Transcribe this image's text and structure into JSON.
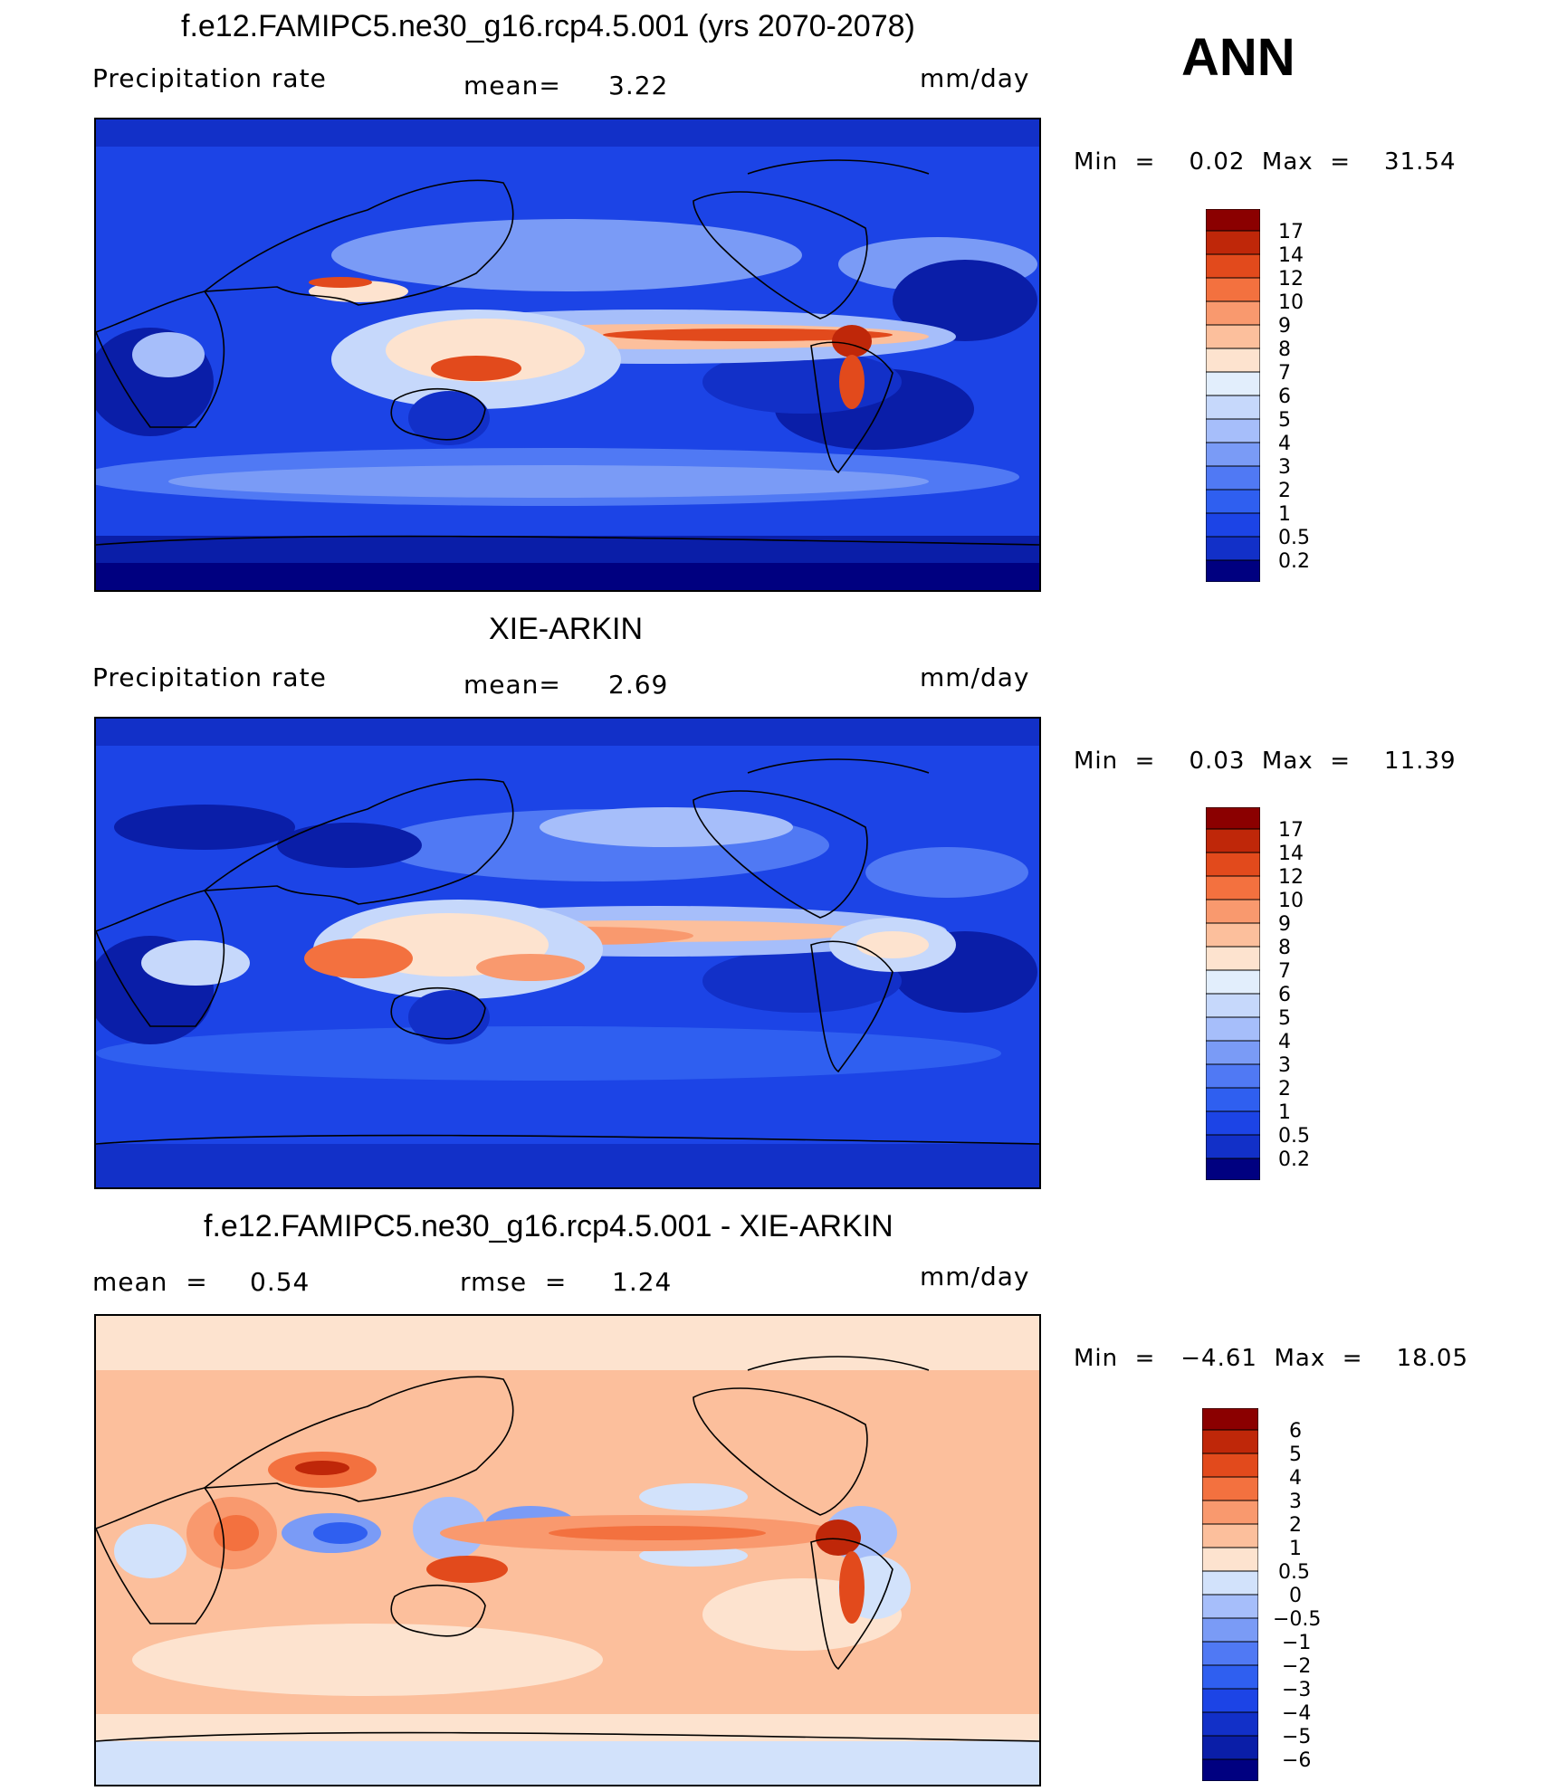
{
  "panels": [
    {
      "title": "f.e12.FAMIPC5.ne30_g16.rcp4.5.001 (yrs 2070-2078)",
      "variable": "Precipitation  rate",
      "mean_label": "mean=",
      "mean_value": "3.22",
      "units": "mm/day",
      "minmax": "Min  =    0.02  Max  =    31.54",
      "colorbar_labels": [
        "17",
        "14",
        "12",
        "10",
        "9",
        "8",
        "7",
        "6",
        "5",
        "4",
        "3",
        "2",
        "1",
        "0.5",
        "0.2"
      ]
    },
    {
      "title": "XIE-ARKIN",
      "variable": "Precipitation  rate",
      "mean_label": "mean=",
      "mean_value": "2.69",
      "units": "mm/day",
      "minmax": "Min  =    0.03  Max  =    11.39",
      "colorbar_labels": [
        "17",
        "14",
        "12",
        "10",
        "9",
        "8",
        "7",
        "6",
        "5",
        "4",
        "3",
        "2",
        "1",
        "0.5",
        "0.2"
      ]
    },
    {
      "title": "f.e12.FAMIPC5.ne30_g16.rcp4.5.001 - XIE-ARKIN",
      "mean_label": "mean  =",
      "mean_value": "0.54",
      "rmse_label": "rmse  =",
      "rmse_value": "1.24",
      "units": "mm/day",
      "minmax": "Min  =   −4.61  Max  =    18.05",
      "colorbar_labels": [
        "6",
        "5",
        "4",
        "3",
        "2",
        "1",
        "0.5",
        "0",
        "−0.5",
        "−1",
        "−2",
        "−3",
        "−4",
        "−5",
        "−6"
      ]
    }
  ],
  "season": "ANN",
  "colors": {
    "precip_scale": [
      "#000080",
      "#0a1ea8",
      "#1230c8",
      "#1c44e6",
      "#2f5ff0",
      "#5079f4",
      "#7a9bf6",
      "#a6befa",
      "#c6d8fb",
      "#e2eefc",
      "#fde3cf",
      "#fcbf9c",
      "#f9996e",
      "#f3713f",
      "#e24a1c",
      "#bf2709",
      "#8b0000"
    ],
    "diff_scale": [
      "#000080",
      "#0a1ea8",
      "#1230c8",
      "#1c44e6",
      "#2f5ff0",
      "#5079f4",
      "#7a9bf6",
      "#a6befa",
      "#d2e2fb",
      "#fde3cf",
      "#fcbf9c",
      "#f9996e",
      "#f3713f",
      "#e24a1c",
      "#bf2709",
      "#8b0000"
    ]
  }
}
